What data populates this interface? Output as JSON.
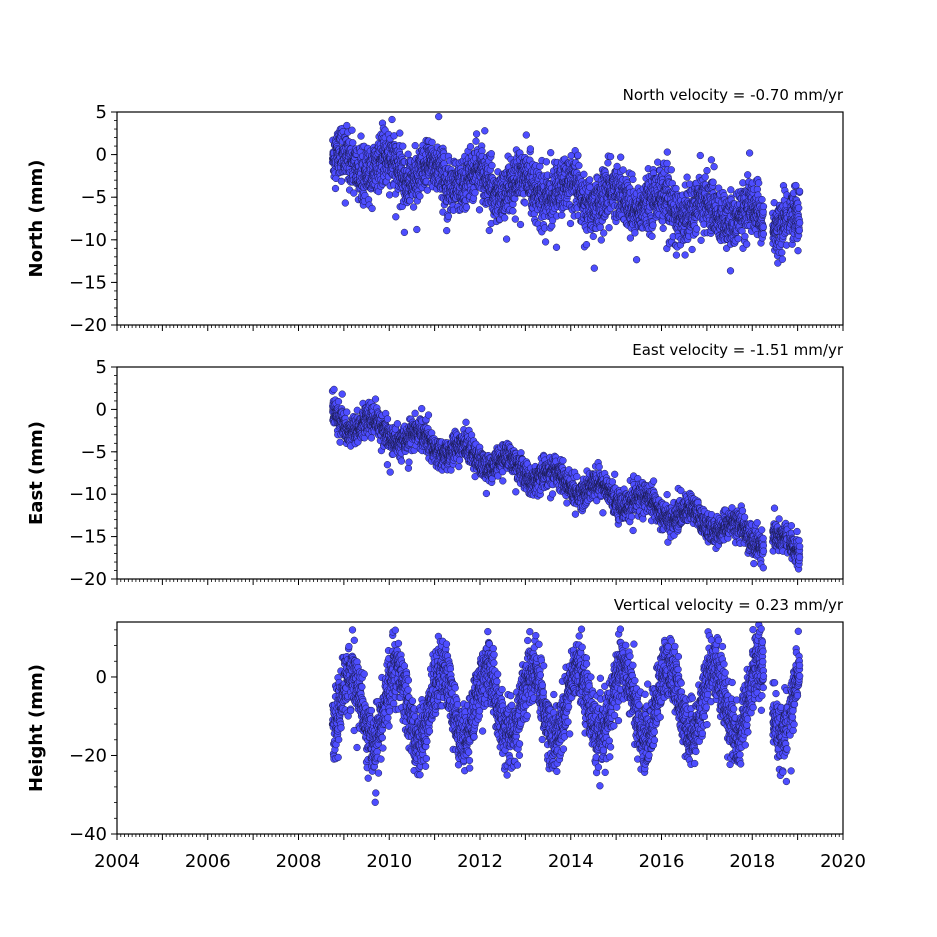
{
  "chart_data": [
    {
      "type": "scatter",
      "title": "North velocity = -0.70 mm/yr",
      "xlabel": "",
      "ylabel": "North (mm)",
      "xlim": [
        2004,
        2020
      ],
      "ylim": [
        -20,
        5
      ],
      "yticks": [
        5,
        0,
        -5,
        -10,
        -15,
        -20
      ],
      "ytick_labels": [
        "5",
        "0",
        "−5",
        "−10",
        "−15",
        "−20"
      ],
      "xticks": [],
      "xtick_labels": [],
      "marker_color": "#4d4dff",
      "edge_color": "#1a1a4d",
      "model": {
        "start": 2008.75,
        "end": 2019.05,
        "velocity": -0.7,
        "offset_at_start": -0.8,
        "annual_amp": 1.2,
        "annual_phase": 0.3,
        "scatter": 1.5,
        "outlier_rate": 0.04,
        "outlier_scale": 5,
        "gaps": [
          [
            2018.25,
            2018.45
          ],
          [
            2018.78,
            2018.82
          ]
        ]
      }
    },
    {
      "type": "scatter",
      "title": "East velocity = -1.51 mm/yr",
      "xlabel": "",
      "ylabel": "East (mm)",
      "xlim": [
        2004,
        2020
      ],
      "ylim": [
        -20,
        5
      ],
      "yticks": [
        5,
        0,
        -5,
        -10,
        -15,
        -20
      ],
      "ytick_labels": [
        "5",
        "0",
        "−5",
        "−10",
        "−15",
        "−20"
      ],
      "xticks": [],
      "xtick_labels": [],
      "marker_color": "#4d4dff",
      "edge_color": "#1a1a4d",
      "model": {
        "start": 2008.75,
        "end": 2019.05,
        "velocity": -1.51,
        "offset_at_start": -0.8,
        "annual_amp": 1.0,
        "annual_phase": 0.6,
        "scatter": 0.8,
        "outlier_rate": 0.03,
        "outlier_scale": 3,
        "gaps": [
          [
            2018.25,
            2018.45
          ],
          [
            2018.78,
            2018.82
          ]
        ]
      }
    },
    {
      "type": "scatter",
      "title": "Vertical velocity = 0.23 mm/yr",
      "xlabel": "",
      "ylabel": "Height (mm)",
      "xlim": [
        2004,
        2020
      ],
      "ylim": [
        -40,
        14
      ],
      "yticks": [
        0,
        -20,
        -40
      ],
      "ytick_labels": [
        "0",
        "−20",
        "−40"
      ],
      "xticks": [
        2004,
        2006,
        2008,
        2010,
        2012,
        2014,
        2016,
        2018,
        2020
      ],
      "xtick_labels": [
        "2004",
        "2006",
        "2008",
        "2010",
        "2012",
        "2014",
        "2016",
        "2018",
        "2020"
      ],
      "marker_color": "#4d4dff",
      "edge_color": "#1a1a4d",
      "model": {
        "start": 2008.75,
        "end": 2019.05,
        "velocity": 0.23,
        "offset_at_start": -8,
        "annual_amp": 9,
        "annual_phase": 0.1,
        "scatter": 4,
        "outlier_rate": 0.03,
        "outlier_scale": 10,
        "gaps": [
          [
            2018.25,
            2018.45
          ],
          [
            2018.78,
            2018.82
          ]
        ]
      }
    }
  ]
}
